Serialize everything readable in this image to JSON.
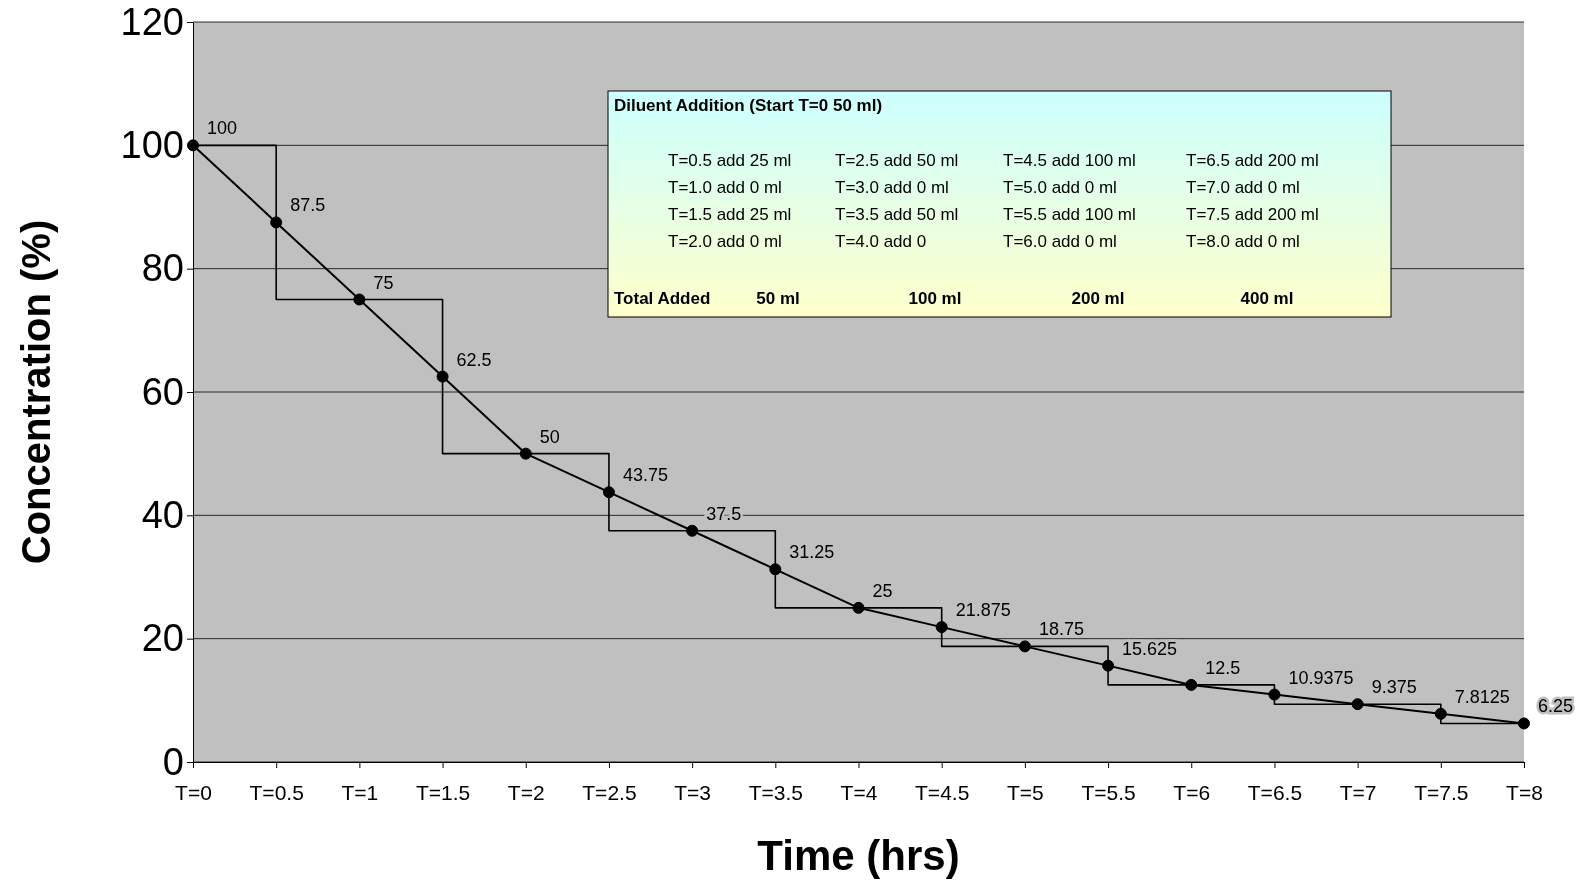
{
  "chart_data": {
    "type": "line",
    "xlabel": "Time (hrs)",
    "ylabel": "Concentration (%)",
    "categories": [
      "T=0",
      "T=0.5",
      "T=1",
      "T=1.5",
      "T=2",
      "T=2.5",
      "T=3",
      "T=3.5",
      "T=4",
      "T=4.5",
      "T=5",
      "T=5.5",
      "T=6",
      "T=6.5",
      "T=7",
      "T=7.5",
      "T=8"
    ],
    "series": [
      {
        "type": "line",
        "color": "#000000",
        "marker": "circle",
        "values": [
          100,
          87.5,
          75,
          62.5,
          50,
          43.75,
          37.5,
          31.25,
          25,
          21.875,
          18.75,
          15.625,
          12.5,
          10.9375,
          9.375,
          7.8125,
          6.25
        ],
        "value_labels": [
          "100",
          "87.5",
          "75",
          "62.5",
          "50",
          "43.75",
          "37.5",
          "31.25",
          "25",
          "21.875",
          "18.75",
          "15.625",
          "12.5",
          "10.9375",
          "9.375",
          "7.8125",
          "6.25"
        ]
      },
      {
        "type": "step",
        "color": "#000000",
        "values": [
          100,
          75,
          75,
          50,
          50,
          37.5,
          37.5,
          25,
          25,
          18.75,
          18.75,
          12.5,
          12.5,
          9.375,
          9.375,
          6.25,
          6.25
        ]
      }
    ],
    "ylim": [
      0,
      120
    ],
    "yticks": [
      0,
      20,
      40,
      60,
      80,
      100,
      120
    ],
    "grid": "y",
    "annotations": [
      "Diluent Addition (Start T=0 50 ml)",
      "T=0.5 add 25 ml",
      "T=1.0 add 0 ml",
      "T=1.5 add 25 ml",
      "T=2.0 add 0 ml",
      "T=2.5 add 50 ml",
      "T=3.0 add 0 ml",
      "T=3.5 add 50 ml",
      "T=4.0 add 0",
      "T=4.5 add 100 ml",
      "T=5.0 add 0 ml",
      "T=5.5 add 100 ml",
      "T=6.0 add 0 ml",
      "T=6.5 add 200 ml",
      "T=7.0 add 0 ml",
      "T=7.5 add 200 ml",
      "T=8.0 add 0 ml",
      "Total Added",
      "50 ml",
      "100 ml",
      "200 ml",
      "400 ml"
    ]
  }
}
